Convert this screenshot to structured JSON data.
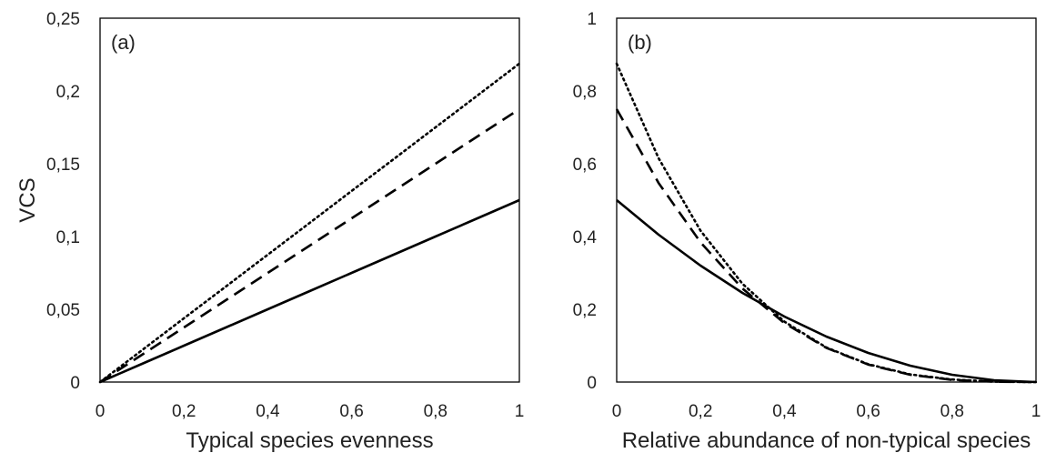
{
  "chart_data": [
    {
      "type": "line",
      "panel_label": "(a)",
      "title": "",
      "xlabel": "Typical species evenness",
      "ylabel": "VCS",
      "xlim": [
        0,
        1
      ],
      "ylim": [
        0,
        0.25
      ],
      "xticks": [
        0,
        0.2,
        0.4,
        0.6,
        0.8,
        1
      ],
      "xtick_labels": [
        "0",
        "0,2",
        "0,4",
        "0,6",
        "0,8",
        "1"
      ],
      "yticks": [
        0,
        0.05,
        0.1,
        0.15,
        0.2,
        0.25
      ],
      "ytick_labels": [
        "0",
        "0,05",
        "0,1",
        "0,15",
        "0,2",
        "0,25"
      ],
      "grid": false,
      "line_color": "#000000",
      "x": [
        0,
        0.1,
        0.2,
        0.3,
        0.4,
        0.5,
        0.6,
        0.7,
        0.8,
        0.9,
        1
      ],
      "series": [
        {
          "style": "solid",
          "values": [
            0,
            0.0125,
            0.025,
            0.0375,
            0.05,
            0.0625,
            0.075,
            0.0875,
            0.1,
            0.1125,
            0.125
          ]
        },
        {
          "style": "dashed",
          "values": [
            0,
            0.01875,
            0.0375,
            0.05625,
            0.075,
            0.09375,
            0.1125,
            0.13125,
            0.15,
            0.16875,
            0.1875
          ]
        },
        {
          "style": "dotted",
          "values": [
            0,
            0.0219,
            0.0438,
            0.0656,
            0.0875,
            0.1094,
            0.1313,
            0.1531,
            0.175,
            0.1969,
            0.2188
          ]
        }
      ]
    },
    {
      "type": "line",
      "panel_label": "(b)",
      "title": "",
      "xlabel": "Relative abundance of non-typical species",
      "ylabel": "",
      "xlim": [
        0,
        1
      ],
      "ylim": [
        0,
        1
      ],
      "xticks": [
        0,
        0.2,
        0.4,
        0.6,
        0.8,
        1
      ],
      "xtick_labels": [
        "0",
        "0,2",
        "0,4",
        "0,6",
        "0,8",
        "1"
      ],
      "yticks": [
        0,
        0.2,
        0.4,
        0.6,
        0.8,
        1
      ],
      "ytick_labels": [
        "0",
        "0,2",
        "0,4",
        "0,6",
        "0,8",
        "1"
      ],
      "grid": false,
      "line_color": "#000000",
      "x": [
        0,
        0.1,
        0.2,
        0.3,
        0.4,
        0.5,
        0.6,
        0.7,
        0.8,
        0.9,
        1
      ],
      "series": [
        {
          "style": "solid",
          "values": [
            0.5,
            0.405,
            0.32,
            0.245,
            0.18,
            0.125,
            0.08,
            0.045,
            0.02,
            0.005,
            0
          ]
        },
        {
          "style": "dashed",
          "values": [
            0.75,
            0.547,
            0.384,
            0.257,
            0.162,
            0.094,
            0.048,
            0.02,
            0.006,
            0.001,
            0
          ]
        },
        {
          "style": "dotted",
          "values": [
            0.875,
            0.615,
            0.416,
            0.27,
            0.166,
            0.095,
            0.049,
            0.021,
            0.007,
            0.001,
            0
          ]
        }
      ]
    }
  ]
}
